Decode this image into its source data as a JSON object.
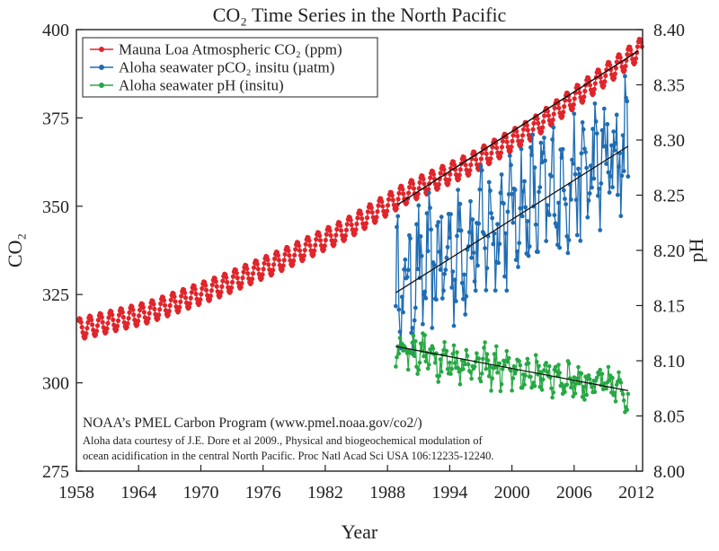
{
  "chart_data": {
    "type": "line",
    "title": "CO₂ Time Series in the North Pacific",
    "xlabel": "Year",
    "ylabel_left": "CO₂",
    "ylabel_right": "pH",
    "xlim": [
      1958,
      2012.6
    ],
    "ylim_left": [
      275,
      400
    ],
    "ylim_right": [
      8.0,
      8.4
    ],
    "x_ticks": [
      "1958",
      "1964",
      "1970",
      "1976",
      "1982",
      "1988",
      "1994",
      "2000",
      "2006",
      "2012"
    ],
    "y_ticks_left": [
      "275",
      "300",
      "325",
      "350",
      "375",
      "400"
    ],
    "y_ticks_right": [
      "8.00",
      "8.05",
      "8.10",
      "8.15",
      "8.20",
      "8.25",
      "8.30",
      "8.35",
      "8.40"
    ],
    "legend_position": "top-left",
    "grid": false,
    "series": [
      {
        "name": "Mauna Loa Atmospheric CO₂ (ppm)",
        "axis": "left",
        "color": "#e0252b",
        "trend": [
          [
            1958.2,
            315.2
          ],
          [
            1965,
            320.0
          ],
          [
            1972,
            327.5
          ],
          [
            1978,
            335.0
          ],
          [
            1984,
            343.5
          ],
          [
            1990,
            354.0
          ],
          [
            1996,
            362.0
          ],
          [
            2002,
            372.0
          ],
          [
            2008,
            385.0
          ],
          [
            2012.6,
            395.0
          ]
        ],
        "seasonal_amplitude": 3.0,
        "trend_line": [
          [
            1989.0,
            350.5
          ],
          [
            2012.2,
            394.0
          ]
        ]
      },
      {
        "name": "Aloha seawater pCO₂ insitu (µatm)",
        "axis": "left",
        "color": "#1f6db3",
        "trend": [
          [
            1988.8,
            326
          ],
          [
            1994,
            336
          ],
          [
            2000,
            348
          ],
          [
            2006,
            357
          ],
          [
            2011.2,
            366
          ]
        ],
        "spread": 18,
        "trend_line": [
          [
            1988.8,
            325.5
          ],
          [
            2011.2,
            367.0
          ]
        ]
      },
      {
        "name": "Aloha seawater pH (insitu)",
        "axis": "right",
        "color": "#27a844",
        "trend": [
          [
            1988.8,
            8.113
          ],
          [
            1994,
            8.1
          ],
          [
            2000,
            8.091
          ],
          [
            2006,
            8.083
          ],
          [
            2011.2,
            8.073
          ]
        ],
        "spread": 0.025,
        "trend_line": [
          [
            1988.8,
            8.113
          ],
          [
            2011.2,
            8.073
          ]
        ]
      }
    ]
  },
  "credits": {
    "line1": "NOAA’s PMEL Carbon Program (www.pmel.noaa.gov/co2/)",
    "line2": "Aloha data courtesy of J.E. Dore et al 2009., Physical and biogeochemical modulation of",
    "line3": "ocean acidification in the central North Pacific. Proc Natl Acad Sci USA 106:12235-12240."
  }
}
